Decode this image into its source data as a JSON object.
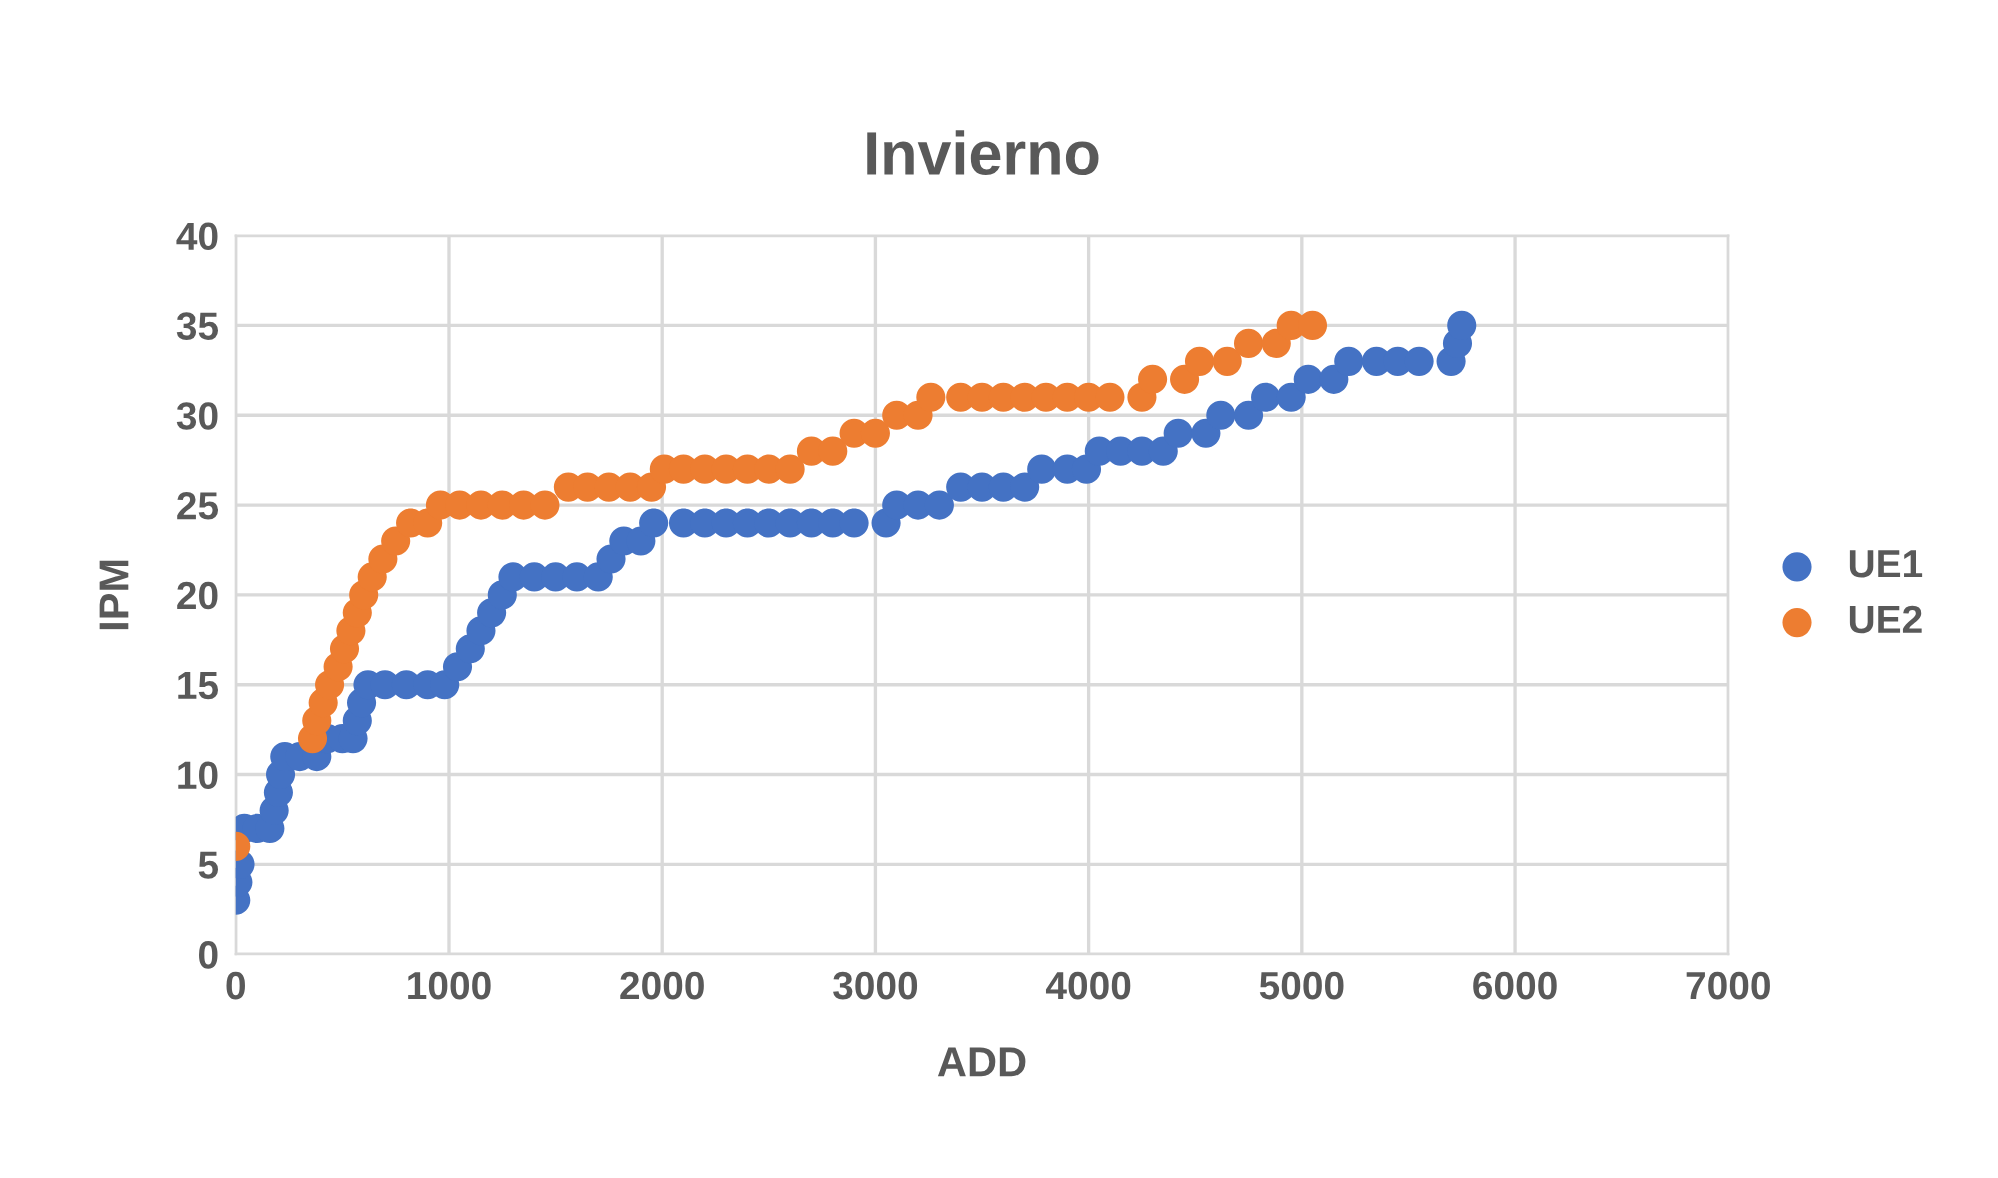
{
  "chart_data": {
    "type": "scatter",
    "title": "Invierno",
    "xlabel": "ADD",
    "ylabel": "IPM",
    "xlim": [
      0,
      7000
    ],
    "xticks": [
      0,
      1000,
      2000,
      3000,
      4000,
      5000,
      6000,
      7000
    ],
    "ylim": [
      0,
      40
    ],
    "yticks": [
      0,
      5,
      10,
      15,
      20,
      25,
      30,
      35,
      40
    ],
    "grid": true,
    "legend": "right",
    "marker": "circle",
    "series": [
      {
        "name": "UE1",
        "color": "#4472c4",
        "x": [
          0,
          10,
          20,
          40,
          100,
          160,
          180,
          200,
          210,
          230,
          300,
          380,
          430,
          500,
          550,
          570,
          590,
          620,
          700,
          800,
          900,
          980,
          1040,
          1100,
          1150,
          1200,
          1250,
          1300,
          1400,
          1500,
          1600,
          1700,
          1760,
          1820,
          1900,
          1960,
          2100,
          2200,
          2300,
          2400,
          2500,
          2600,
          2700,
          2800,
          2900,
          3050,
          3100,
          3200,
          3300,
          3400,
          3500,
          3600,
          3700,
          3780,
          3900,
          3990,
          4050,
          4150,
          4250,
          4350,
          4420,
          4550,
          4620,
          4750,
          4830,
          4950,
          5030,
          5150,
          5220,
          5350,
          5450,
          5550,
          5700,
          5730,
          5750
        ],
        "values": [
          3,
          4,
          5,
          7,
          7,
          7,
          8,
          9,
          10,
          11,
          11,
          11,
          12,
          12,
          12,
          13,
          14,
          15,
          15,
          15,
          15,
          15,
          16,
          17,
          18,
          19,
          20,
          21,
          21,
          21,
          21,
          21,
          22,
          23,
          23,
          24,
          24,
          24,
          24,
          24,
          24,
          24,
          24,
          24,
          24,
          24,
          25,
          25,
          25,
          26,
          26,
          26,
          26,
          27,
          27,
          27,
          28,
          28,
          28,
          28,
          29,
          29,
          30,
          30,
          31,
          31,
          32,
          32,
          33,
          33,
          33,
          33,
          33,
          34,
          35
        ]
      },
      {
        "name": "UE2",
        "color": "#ed7d31",
        "x": [
          0,
          360,
          380,
          410,
          440,
          480,
          510,
          540,
          570,
          600,
          640,
          690,
          750,
          820,
          900,
          960,
          1050,
          1150,
          1250,
          1350,
          1450,
          1560,
          1650,
          1750,
          1850,
          1950,
          2010,
          2100,
          2200,
          2300,
          2400,
          2500,
          2600,
          2700,
          2800,
          2900,
          3000,
          3100,
          3200,
          3260,
          3400,
          3500,
          3600,
          3700,
          3800,
          3900,
          4000,
          4100,
          4250,
          4300,
          4450,
          4520,
          4650,
          4750,
          4880,
          4950,
          5050
        ],
        "values": [
          6,
          12,
          13,
          14,
          15,
          16,
          17,
          18,
          19,
          20,
          21,
          22,
          23,
          24,
          24,
          25,
          25,
          25,
          25,
          25,
          25,
          26,
          26,
          26,
          26,
          26,
          27,
          27,
          27,
          27,
          27,
          27,
          27,
          28,
          28,
          29,
          29,
          30,
          30,
          31,
          31,
          31,
          31,
          31,
          31,
          31,
          31,
          31,
          31,
          32,
          32,
          33,
          33,
          34,
          34,
          35,
          35
        ]
      }
    ]
  }
}
